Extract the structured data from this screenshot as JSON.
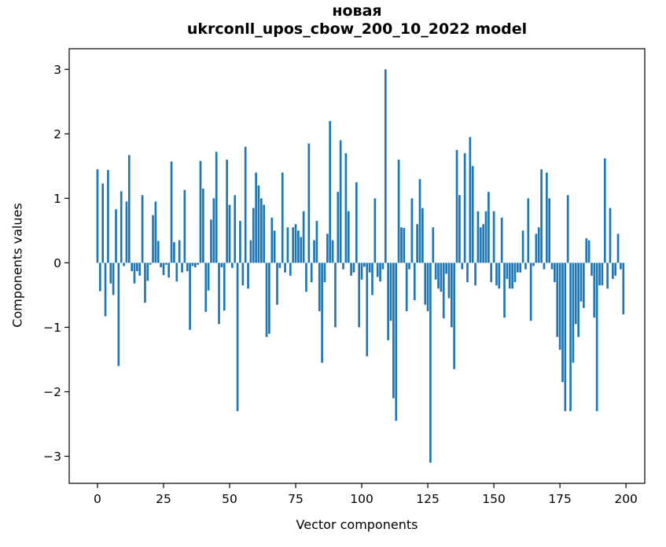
{
  "chart_data": {
    "type": "bar",
    "title": "новая",
    "subtitle": "ukrconll_upos_cbow_200_10_2022 model",
    "xlabel": "Vector components",
    "ylabel": "Components values",
    "bar_color": "#1f77b4",
    "x_start": 0,
    "xlim": [
      -10.7,
      207.1
    ],
    "ylim": [
      -3.42,
      3.32
    ],
    "xticks": [
      0,
      25,
      50,
      75,
      100,
      125,
      150,
      175,
      200
    ],
    "ytick_values": [
      -3,
      -2,
      -1,
      0,
      1,
      2,
      3
    ],
    "ytick_labels": [
      "−3",
      "−2",
      "−1",
      "0",
      "1",
      "2",
      "3"
    ],
    "bar_width_units": 0.8,
    "values": [
      1.45,
      -0.44,
      1.23,
      -0.83,
      1.44,
      -0.32,
      -0.5,
      0.83,
      -1.6,
      1.11,
      -0.05,
      0.95,
      1.67,
      -0.13,
      -0.32,
      -0.13,
      -0.2,
      1.05,
      -0.62,
      -0.28,
      -0.03,
      0.74,
      0.95,
      0.34,
      -0.07,
      -0.19,
      -0.03,
      -0.23,
      1.57,
      0.32,
      -0.29,
      0.35,
      -0.15,
      1.13,
      -0.13,
      -1.04,
      -0.05,
      -0.07,
      -0.03,
      1.58,
      1.15,
      -0.76,
      -0.43,
      0.67,
      1.0,
      1.72,
      -0.95,
      -0.07,
      -0.74,
      1.6,
      0.9,
      -0.08,
      1.05,
      -2.3,
      0.65,
      -0.35,
      1.8,
      -0.4,
      0.35,
      0.85,
      1.4,
      1.2,
      1.0,
      0.9,
      -1.15,
      -1.1,
      0.7,
      0.5,
      -0.65,
      -0.08,
      1.4,
      -0.15,
      0.55,
      -0.2,
      0.55,
      0.6,
      0.5,
      0.4,
      0.8,
      -0.45,
      1.85,
      -0.3,
      0.35,
      0.65,
      -0.75,
      -1.55,
      -0.3,
      0.45,
      2.2,
      0.35,
      -1.0,
      1.1,
      1.9,
      -0.1,
      1.7,
      0.8,
      -0.2,
      -0.15,
      1.25,
      -1.0,
      -0.26,
      -0.06,
      -1.45,
      -0.15,
      -0.5,
      1.0,
      -0.22,
      -0.29,
      -0.1,
      3.0,
      -1.2,
      -0.9,
      -2.1,
      -2.45,
      1.6,
      0.55,
      0.54,
      -0.75,
      -0.1,
      1.0,
      -0.58,
      0.6,
      1.3,
      0.85,
      -0.65,
      -0.75,
      -3.1,
      0.55,
      -0.26,
      -0.4,
      -0.45,
      -0.86,
      -0.17,
      -0.55,
      -1.0,
      -1.65,
      1.75,
      1.05,
      -0.1,
      1.7,
      -0.3,
      1.95,
      1.5,
      -0.35,
      0.8,
      0.55,
      0.6,
      0.8,
      1.1,
      -0.3,
      0.8,
      -0.35,
      -0.4,
      0.7,
      -0.85,
      -0.25,
      -0.4,
      -0.4,
      -0.3,
      -0.15,
      -0.15,
      0.5,
      -0.1,
      1.0,
      -0.9,
      -0.05,
      0.45,
      0.55,
      1.45,
      -0.1,
      1.4,
      1.0,
      -0.1,
      -0.3,
      -1.15,
      -1.35,
      -1.85,
      -2.3,
      1.05,
      -2.3,
      -1.55,
      -0.95,
      -1.15,
      -0.6,
      -0.7,
      0.38,
      0.35,
      -0.2,
      -0.85,
      -2.3,
      -0.35,
      -0.35,
      1.62,
      -0.4,
      0.85,
      -0.25,
      -0.2,
      0.45,
      -0.1,
      -0.8
    ]
  }
}
